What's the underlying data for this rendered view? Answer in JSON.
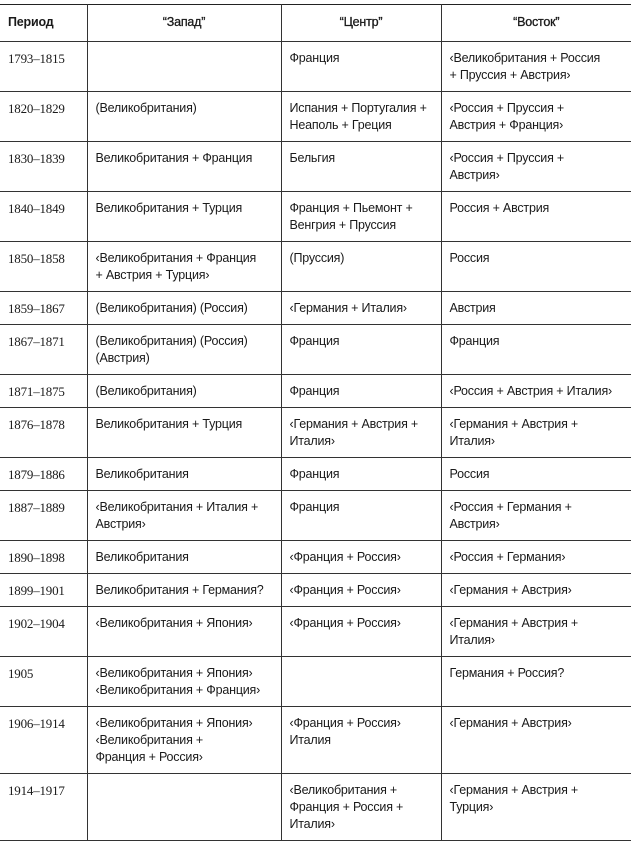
{
  "table": {
    "headers": [
      "Период",
      "“Запад”",
      "“Центр”",
      "“Восток”"
    ],
    "rows": [
      {
        "period": "1793–1815",
        "west": "",
        "center": "Франция",
        "east": "‹Великобритания + Россия\n+ Пруссия + Австрия›"
      },
      {
        "period": "1820–1829",
        "west": "(Великобритания)",
        "center": "Испания + Португалия +\nНеаполь + Греция",
        "east": "‹Россия + Пруссия +\nАвстрия + Франция›"
      },
      {
        "period": "1830–1839",
        "west": "Великобритания + Франция",
        "center": "Бельгия",
        "east": "‹Россия + Пруссия +\nАвстрия›"
      },
      {
        "period": "1840–1849",
        "west": "Великобритания + Турция",
        "center": "Франция + Пьемонт +\nВенгрия + Пруссия",
        "east": "Россия + Австрия"
      },
      {
        "period": "1850–1858",
        "west": "‹Великобритания + Франция\n+ Австрия + Турция›",
        "center": "(Пруссия)",
        "east": "Россия"
      },
      {
        "period": "1859–1867",
        "west": "(Великобритания) (Россия)",
        "center": "‹Германия + Италия›",
        "east": "Австрия"
      },
      {
        "period": "1867–1871",
        "west": "(Великобритания) (Россия)\n(Австрия)",
        "center": "Франция",
        "east": "Франция"
      },
      {
        "period": "1871–1875",
        "west": "(Великобритания)",
        "center": "Франция",
        "east": "‹Россия + Австрия + Италия›"
      },
      {
        "period": "1876–1878",
        "west": "Великобритания + Турция",
        "center": "‹Германия + Австрия +\nИталия›",
        "east": "‹Германия + Австрия +\nИталия›"
      },
      {
        "period": "1879–1886",
        "west": "Великобритания",
        "center": "Франция",
        "east": "Россия"
      },
      {
        "period": "1887–1889",
        "west": "‹Великобритания + Италия +\nАвстрия›",
        "center": "Франция",
        "east": "‹Россия + Германия +\nАвстрия›"
      },
      {
        "period": "1890–1898",
        "west": "Великобритания",
        "center": "‹Франция + Россия›",
        "east": "‹Россия + Германия›"
      },
      {
        "period": "1899–1901",
        "west": "Великобритания + Германия?",
        "center": "‹Франция + Россия›",
        "east": "‹Германия + Австрия›"
      },
      {
        "period": "1902–1904",
        "west": "‹Великобритания + Япония›",
        "center": "‹Франция + Россия›",
        "east": "‹Германия + Австрия +\nИталия›"
      },
      {
        "period": "1905",
        "west": "‹Великобритания + Япония›\n‹Великобритания + Франция›",
        "center": "",
        "east": "Германия + Россия?"
      },
      {
        "period": "1906–1914",
        "west": "‹Великобритания + Япония›\n‹Великобритания +\nФранция + Россия›",
        "center": "‹Франция + Россия›\nИталия",
        "east": "‹Германия + Австрия›"
      },
      {
        "period": "1914–1917",
        "west": "",
        "center": "‹Великобритания +\nФранция + Россия +\nИталия›",
        "east": "‹Германия + Австрия +\nТурция›"
      }
    ]
  }
}
